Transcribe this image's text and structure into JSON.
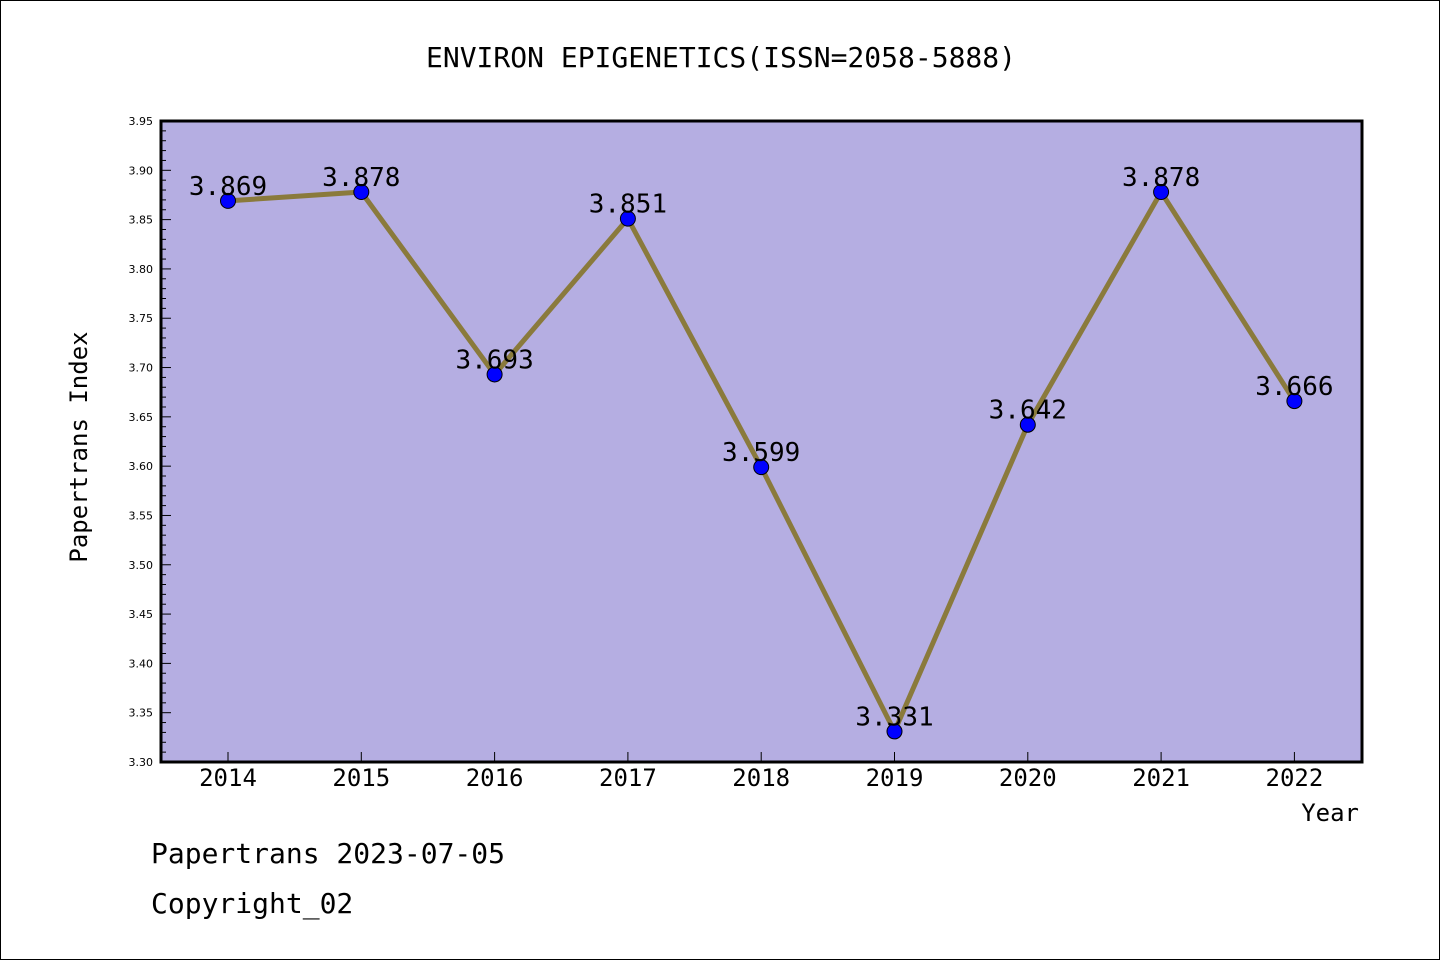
{
  "chart_data": {
    "type": "line",
    "title": "ENVIRON EPIGENETICS(ISSN=2058-5888)",
    "xlabel": "Year",
    "ylabel": "Papertrans Index",
    "categories": [
      "2014",
      "2015",
      "2016",
      "2017",
      "2018",
      "2019",
      "2020",
      "2021",
      "2022"
    ],
    "series": [
      {
        "values": [
          3.869,
          3.878,
          3.693,
          3.851,
          3.599,
          3.331,
          3.642,
          3.878,
          3.666
        ]
      }
    ],
    "data_labels": [
      "3.869",
      "3.878",
      "3.693",
      "3.851",
      "3.599",
      "3.331",
      "3.642",
      "3.878",
      "3.666"
    ],
    "ylim": [
      3.3,
      3.95
    ],
    "yticks": [
      "3.30",
      "3.35",
      "3.40",
      "3.45",
      "3.50",
      "3.55",
      "3.60",
      "3.65",
      "3.70",
      "3.75",
      "3.80",
      "3.85",
      "3.90",
      "3.95"
    ],
    "grid": false,
    "legend": "none",
    "colors": {
      "plot_background": "#b5aee2",
      "line": "#8a7a3c",
      "marker": "#0000ff",
      "axis": "#000000"
    }
  },
  "footer": {
    "date_text": "Papertrans 2023-07-05",
    "copyright_text": "Copyright_02"
  }
}
